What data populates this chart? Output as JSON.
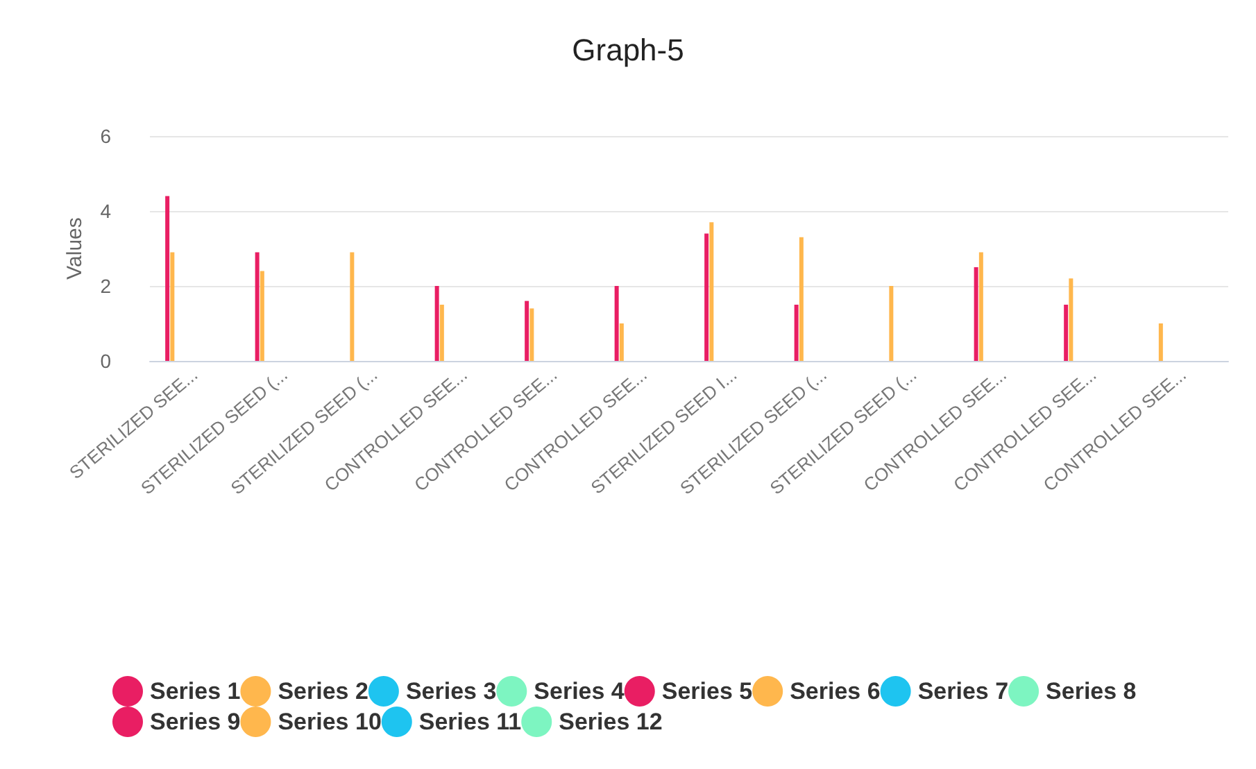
{
  "chart_data": {
    "type": "bar",
    "title": "Graph-5",
    "ylabel": "Values",
    "categories": [
      "STERILIZED SEE...",
      "STERILIZED SEED (...",
      "STERILIZED SEED (...",
      "CONTROLLED SEE...",
      "CONTROLLED SEE...",
      "CONTROLLED SEE...",
      "STERILIZED SEED I...",
      "STERILIZED SEED (...",
      "STERILIZED SEED (...",
      "CONTROLLED SEE...",
      "CONTROLLED SEE...",
      "CONTROLLED SEE..."
    ],
    "series": [
      {
        "name": "Series 1",
        "color": "#e91e63",
        "values": [
          4.4,
          2.9,
          null,
          2,
          1.6,
          2,
          3.4,
          1.5,
          null,
          2.5,
          1.5,
          null
        ]
      },
      {
        "name": "Series 2",
        "color": "#ffb74d",
        "values": [
          2.9,
          2.4,
          2.9,
          1.5,
          1.4,
          1,
          3.7,
          3.3,
          2,
          2.9,
          2.2,
          1
        ]
      },
      {
        "name": "Series 3",
        "color": "#1ec4f0",
        "values": [
          null,
          null,
          null,
          null,
          null,
          null,
          null,
          null,
          null,
          null,
          null,
          null
        ]
      },
      {
        "name": "Series 4",
        "color": "#7df5c1",
        "values": [
          null,
          null,
          null,
          null,
          null,
          null,
          null,
          null,
          null,
          null,
          null,
          null
        ]
      },
      {
        "name": "Series 5",
        "color": "#e91e63",
        "values": [
          null,
          null,
          null,
          null,
          null,
          null,
          null,
          null,
          null,
          null,
          null,
          null
        ]
      },
      {
        "name": "Series 6",
        "color": "#ffb74d",
        "values": [
          null,
          null,
          null,
          null,
          null,
          null,
          null,
          null,
          null,
          null,
          null,
          null
        ]
      },
      {
        "name": "Series 7",
        "color": "#1ec4f0",
        "values": [
          null,
          null,
          null,
          null,
          null,
          null,
          null,
          null,
          null,
          null,
          null,
          null
        ]
      },
      {
        "name": "Series 8",
        "color": "#7df5c1",
        "values": [
          null,
          null,
          null,
          null,
          null,
          null,
          null,
          null,
          null,
          null,
          null,
          null
        ]
      },
      {
        "name": "Series 9",
        "color": "#e91e63",
        "values": [
          null,
          null,
          null,
          null,
          null,
          null,
          null,
          null,
          null,
          null,
          null,
          null
        ]
      },
      {
        "name": "Series 10",
        "color": "#ffb74d",
        "values": [
          null,
          null,
          null,
          null,
          null,
          null,
          null,
          null,
          null,
          null,
          null,
          null
        ]
      },
      {
        "name": "Series 11",
        "color": "#1ec4f0",
        "values": [
          null,
          null,
          null,
          null,
          null,
          null,
          null,
          null,
          null,
          null,
          null,
          null
        ]
      },
      {
        "name": "Series 12",
        "color": "#7df5c1",
        "values": [
          null,
          null,
          null,
          null,
          null,
          null,
          null,
          null,
          null,
          null,
          null,
          null
        ]
      }
    ],
    "ylim": [
      0,
      6
    ],
    "yticks": [
      0,
      2,
      4,
      6
    ],
    "grid": "y",
    "legend": "bottom"
  }
}
